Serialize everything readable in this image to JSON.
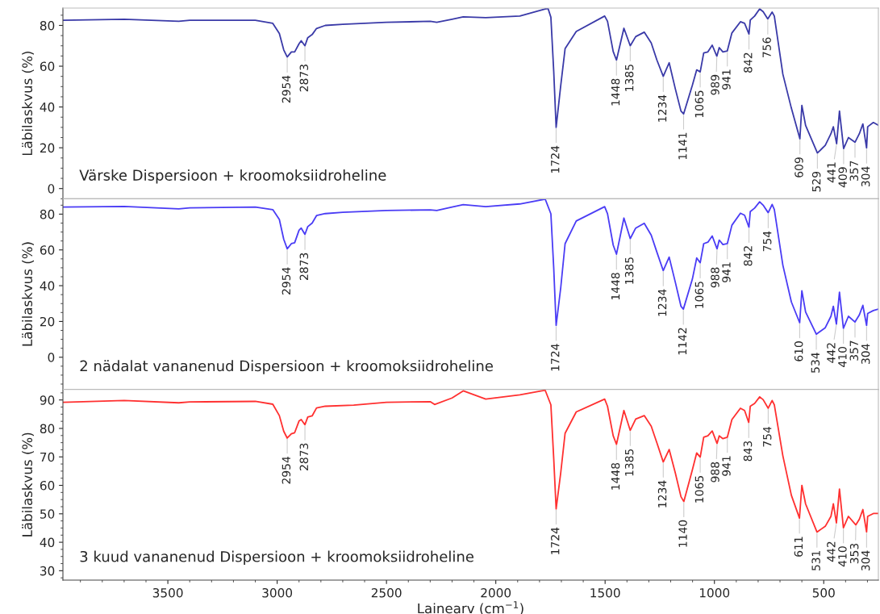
{
  "chart_data": [
    {
      "type": "line",
      "title": "Värske Dispersioon + kroomoksiidroheline",
      "ylabel": "Läbilaskvus (%)",
      "xlim": [
        3980,
        250
      ],
      "xticks": [
        3500,
        3000,
        2500,
        2000,
        1500,
        1000,
        500
      ],
      "ylim": [
        -5,
        88.5
      ],
      "yticks": [
        0,
        20,
        40,
        60,
        80
      ],
      "tick_labels": "y",
      "grid": false,
      "legend": false,
      "series": [
        {
          "color": "#3a3aa8",
          "x": [
            3980,
            3700,
            3450,
            3400,
            3100,
            3020,
            2990,
            2970,
            2954,
            2935,
            2920,
            2900,
            2890,
            2873,
            2860,
            2840,
            2820,
            2780,
            2700,
            2500,
            2300,
            2270,
            2200,
            2149,
            2046,
            1890,
            1774,
            1761,
            1748,
            1735,
            1724,
            1703,
            1683,
            1632,
            1502,
            1489,
            1463,
            1448,
            1414,
            1385,
            1360,
            1321,
            1289,
            1263,
            1234,
            1207,
            1179,
            1153,
            1141,
            1101,
            1081,
            1065,
            1049,
            1030,
            1010,
            989,
            978,
            961,
            941,
            920,
            881,
            862,
            842,
            836,
            816,
            793,
            777,
            756,
            736,
            726,
            687,
            648,
            609,
            600,
            583,
            529,
            493,
            467,
            456,
            441,
            428,
            409,
            387,
            357,
            337,
            321,
            304,
            299,
            273,
            250
          ],
          "values": [
            82.5,
            83,
            82,
            82.5,
            82.5,
            81,
            76,
            68,
            64.5,
            67,
            67,
            71,
            72.5,
            70,
            74,
            75.5,
            78.5,
            80,
            80.5,
            81.5,
            82,
            81.5,
            83,
            84.2,
            83.8,
            84.6,
            88.1,
            88.3,
            84,
            57.5,
            30,
            50.5,
            68.6,
            77,
            84.6,
            82,
            67.2,
            63,
            78.6,
            70,
            74.5,
            76.7,
            71.4,
            63,
            55,
            61.7,
            49,
            38,
            36.6,
            50.6,
            58.2,
            57.2,
            66.5,
            67,
            70.3,
            64.9,
            69.1,
            67,
            67.5,
            76.3,
            81.8,
            81,
            75.8,
            82.6,
            84.6,
            88.1,
            86.7,
            83.2,
            86.5,
            84.6,
            56.1,
            39.4,
            24.4,
            40.8,
            31,
            17.4,
            21.2,
            26.9,
            30.3,
            22,
            38,
            19.6,
            25,
            22.7,
            26.9,
            31.7,
            19.9,
            30.3,
            32.4,
            31
          ]
        }
      ],
      "annotations": [
        {
          "text": "2954",
          "x": 2954,
          "y": 64.5
        },
        {
          "text": "2873",
          "x": 2873,
          "y": 70
        },
        {
          "text": "1724",
          "x": 1724,
          "y": 30
        },
        {
          "text": "1448",
          "x": 1448,
          "y": 63
        },
        {
          "text": "1385",
          "x": 1385,
          "y": 70
        },
        {
          "text": "1234",
          "x": 1234,
          "y": 55
        },
        {
          "text": "1141",
          "x": 1141,
          "y": 36.6
        },
        {
          "text": "1065",
          "x": 1065,
          "y": 57.2
        },
        {
          "text": "989",
          "x": 989,
          "y": 64.9
        },
        {
          "text": "941",
          "x": 941,
          "y": 67.5
        },
        {
          "text": "842",
          "x": 842,
          "y": 75.8
        },
        {
          "text": "756",
          "x": 756,
          "y": 83.2
        },
        {
          "text": "609",
          "x": 609,
          "y": 24.4
        },
        {
          "text": "529",
          "x": 529,
          "y": 17.4
        },
        {
          "text": "441",
          "x": 441,
          "y": 22
        },
        {
          "text": "409",
          "x": 409,
          "y": 19.6
        },
        {
          "text": "357",
          "x": 357,
          "y": 22.7
        },
        {
          "text": "304",
          "x": 304,
          "y": 19.9
        }
      ]
    },
    {
      "type": "line",
      "title": "2 nädalat vananenud Dispersioon + kroomoksiidroheline",
      "ylabel": "Läbilaskvus (%)",
      "xlim": [
        3980,
        250
      ],
      "xticks": [
        3500,
        3000,
        2500,
        2000,
        1500,
        1000,
        500
      ],
      "ylim": [
        -18,
        88.6
      ],
      "yticks": [
        0,
        20,
        40,
        60,
        80
      ],
      "tick_labels": "y",
      "grid": false,
      "legend": false,
      "series": [
        {
          "color": "#4a3cf5",
          "x": [
            3980,
            3700,
            3450,
            3400,
            3100,
            3020,
            2990,
            2970,
            2954,
            2935,
            2920,
            2900,
            2890,
            2873,
            2860,
            2840,
            2820,
            2780,
            2700,
            2500,
            2300,
            2270,
            2200,
            2149,
            2046,
            1890,
            1774,
            1748,
            1735,
            1724,
            1703,
            1683,
            1632,
            1502,
            1489,
            1463,
            1448,
            1414,
            1385,
            1360,
            1321,
            1289,
            1263,
            1234,
            1207,
            1179,
            1153,
            1142,
            1101,
            1081,
            1065,
            1049,
            1030,
            1010,
            988,
            978,
            961,
            941,
            920,
            881,
            862,
            842,
            836,
            816,
            793,
            777,
            754,
            736,
            726,
            687,
            648,
            610,
            600,
            583,
            534,
            493,
            467,
            456,
            442,
            428,
            410,
            387,
            357,
            337,
            321,
            304,
            299,
            273,
            250
          ],
          "values": [
            84,
            84.3,
            82.9,
            83.5,
            84,
            82.5,
            77,
            66,
            60.6,
            63.5,
            64,
            71,
            72.2,
            68.7,
            73,
            75,
            79.2,
            80.3,
            81,
            82,
            82.4,
            82,
            84,
            85.3,
            84.2,
            85.7,
            88.4,
            80.2,
            49.9,
            17.8,
            38.8,
            63.5,
            76.2,
            84.2,
            80.2,
            62.7,
            57.6,
            77.8,
            66.3,
            72.2,
            74.9,
            68.2,
            58.7,
            48.4,
            56,
            42,
            28.5,
            26.9,
            43.6,
            55.5,
            52.8,
            63.5,
            64.3,
            67.8,
            60.6,
            65.5,
            63,
            63.5,
            73.8,
            80.5,
            79.4,
            72.7,
            81.4,
            83.4,
            86.9,
            85,
            80.8,
            85.4,
            82.6,
            51.5,
            30.9,
            19.3,
            37.2,
            25.3,
            12.9,
            16.5,
            22.9,
            28.5,
            18.5,
            36.4,
            16.2,
            22.9,
            19.7,
            23.7,
            29,
            17.8,
            24.5,
            26.1,
            26.9
          ]
        }
      ],
      "annotations": [
        {
          "text": "2954",
          "x": 2954,
          "y": 60.6
        },
        {
          "text": "2873",
          "x": 2873,
          "y": 68.7
        },
        {
          "text": "1724",
          "x": 1724,
          "y": 17.8
        },
        {
          "text": "1448",
          "x": 1448,
          "y": 57.6
        },
        {
          "text": "1385",
          "x": 1385,
          "y": 66.3
        },
        {
          "text": "1234",
          "x": 1234,
          "y": 48.4
        },
        {
          "text": "1142",
          "x": 1142,
          "y": 26.9
        },
        {
          "text": "1065",
          "x": 1065,
          "y": 52.8
        },
        {
          "text": "988",
          "x": 988,
          "y": 60.6
        },
        {
          "text": "941",
          "x": 941,
          "y": 63.5
        },
        {
          "text": "842",
          "x": 842,
          "y": 72.7
        },
        {
          "text": "754",
          "x": 754,
          "y": 80.8
        },
        {
          "text": "610",
          "x": 610,
          "y": 19.3
        },
        {
          "text": "534",
          "x": 534,
          "y": 12.9
        },
        {
          "text": "442",
          "x": 442,
          "y": 18.5
        },
        {
          "text": "410",
          "x": 410,
          "y": 16.2
        },
        {
          "text": "357",
          "x": 357,
          "y": 19.7
        },
        {
          "text": "304",
          "x": 304,
          "y": 17.8
        }
      ]
    },
    {
      "type": "line",
      "title": "3 kuud vananenud Dispersioon + kroomoksiidroheline",
      "xlabel": "Lainearv (cm$^{−1}$)",
      "ylabel": "Läbilaskvus (%)",
      "xlim": [
        3980,
        250
      ],
      "xticks": [
        3500,
        3000,
        2500,
        2000,
        1500,
        1000,
        500
      ],
      "ylim": [
        26.7,
        93.7
      ],
      "yticks": [
        30,
        40,
        50,
        60,
        70,
        80,
        90
      ],
      "grid": false,
      "legend": false,
      "series": [
        {
          "color": "#ff3030",
          "x": [
            3980,
            3700,
            3450,
            3400,
            3100,
            3020,
            2990,
            2970,
            2954,
            2935,
            2920,
            2900,
            2890,
            2873,
            2860,
            2840,
            2820,
            2780,
            2650,
            2500,
            2300,
            2280,
            2200,
            2149,
            2046,
            1890,
            1774,
            1748,
            1735,
            1724,
            1703,
            1683,
            1632,
            1502,
            1489,
            1463,
            1448,
            1414,
            1385,
            1360,
            1321,
            1289,
            1263,
            1234,
            1207,
            1179,
            1153,
            1140,
            1101,
            1081,
            1065,
            1049,
            1030,
            1010,
            988,
            978,
            961,
            941,
            920,
            881,
            862,
            843,
            836,
            816,
            793,
            777,
            754,
            736,
            726,
            687,
            648,
            611,
            600,
            583,
            531,
            493,
            467,
            456,
            442,
            428,
            410,
            387,
            353,
            337,
            321,
            304,
            299,
            273,
            250
          ],
          "values": [
            89.2,
            89.8,
            89,
            89.3,
            89.5,
            88.5,
            84.5,
            79,
            76.6,
            78.1,
            78.5,
            82.6,
            83.1,
            81.3,
            84,
            84.4,
            87.2,
            87.8,
            88.2,
            89.2,
            89.4,
            88.4,
            90.7,
            93.2,
            90.3,
            91.8,
            93.4,
            88.3,
            69.4,
            51.7,
            64.4,
            78.3,
            85.8,
            90.3,
            87.8,
            77.4,
            74.4,
            86.3,
            79.3,
            83.3,
            84.5,
            80.8,
            74.9,
            68.2,
            72.6,
            64.4,
            56,
            54.3,
            65.4,
            71.4,
            69.9,
            76.9,
            77.4,
            79.1,
            74.7,
            77.4,
            76.4,
            76.9,
            83.1,
            87.1,
            86.3,
            82.1,
            87.8,
            88.8,
            91.1,
            90.1,
            87.1,
            89.8,
            88.3,
            70.4,
            56.5,
            48.5,
            60,
            53.5,
            43.6,
            45.6,
            49.1,
            53.5,
            46.8,
            58.7,
            45.1,
            49.1,
            46.1,
            48.1,
            51.5,
            43.6,
            49.1,
            50.1,
            50.1
          ]
        }
      ],
      "annotations": [
        {
          "text": "2954",
          "x": 2954,
          "y": 76.6
        },
        {
          "text": "2873",
          "x": 2873,
          "y": 81.3
        },
        {
          "text": "1724",
          "x": 1724,
          "y": 51.7
        },
        {
          "text": "1448",
          "x": 1448,
          "y": 74.4
        },
        {
          "text": "1385",
          "x": 1385,
          "y": 79.3
        },
        {
          "text": "1234",
          "x": 1234,
          "y": 68.2
        },
        {
          "text": "1140",
          "x": 1140,
          "y": 54.3
        },
        {
          "text": "1065",
          "x": 1065,
          "y": 69.9
        },
        {
          "text": "988",
          "x": 988,
          "y": 74.7
        },
        {
          "text": "941",
          "x": 941,
          "y": 76.9
        },
        {
          "text": "843",
          "x": 843,
          "y": 82.1
        },
        {
          "text": "754",
          "x": 754,
          "y": 87.1
        },
        {
          "text": "611",
          "x": 611,
          "y": 48.5
        },
        {
          "text": "531",
          "x": 531,
          "y": 43.6
        },
        {
          "text": "442",
          "x": 442,
          "y": 46.8
        },
        {
          "text": "410",
          "x": 410,
          "y": 45.1
        },
        {
          "text": "353",
          "x": 353,
          "y": 46.1
        },
        {
          "text": "304",
          "x": 304,
          "y": 43.6
        }
      ]
    }
  ]
}
